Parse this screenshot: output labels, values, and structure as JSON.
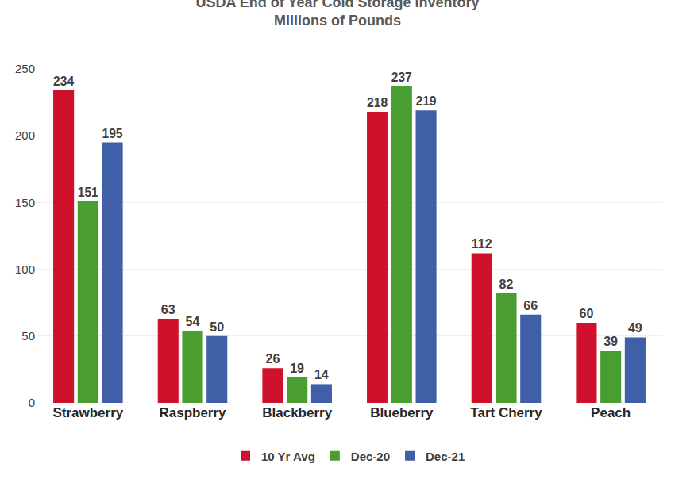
{
  "chart_data": {
    "type": "bar",
    "title": "USDA End of Year Cold Storage Inventory",
    "subtitle": "Millions of Pounds",
    "categories": [
      "Strawberry",
      "Raspberry",
      "Blackberry",
      "Blueberry",
      "Tart Cherry",
      "Peach"
    ],
    "series": [
      {
        "name": "10 Yr Avg",
        "color": "#d0112b",
        "values": [
          234,
          63,
          26,
          218,
          112,
          60
        ]
      },
      {
        "name": "Dec-20",
        "color": "#4a9e2f",
        "values": [
          151,
          54,
          19,
          237,
          82,
          39
        ]
      },
      {
        "name": "Dec-21",
        "color": "#3f5fa6",
        "values": [
          195,
          50,
          14,
          219,
          66,
          49
        ]
      }
    ],
    "ylim": [
      0,
      250
    ],
    "yticks": [
      0,
      50,
      100,
      150,
      200,
      250
    ],
    "grid": true,
    "legend": "bottom",
    "data_labels": true
  }
}
